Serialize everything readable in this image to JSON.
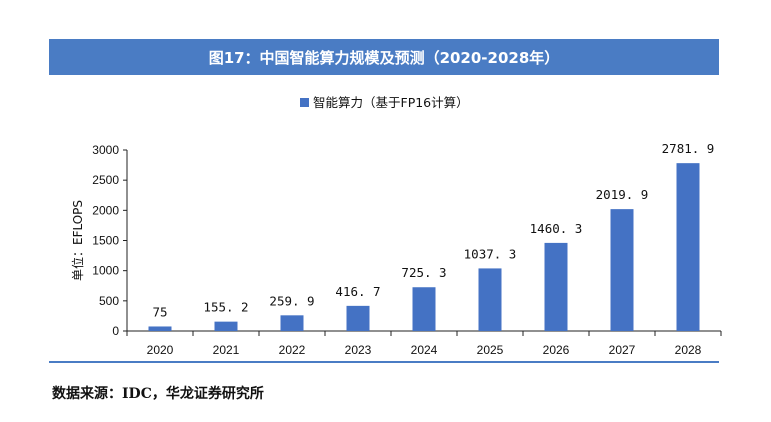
{
  "title": "图17：中国智能算力规模及预测（2020-2028年）",
  "source": "数据来源：IDC，华龙证券研究所",
  "colors": {
    "accent": "#4a7cc4",
    "bar": "#4472c4"
  },
  "chart_data": {
    "type": "bar",
    "categories": [
      "2020",
      "2021",
      "2022",
      "2023",
      "2024",
      "2025",
      "2026",
      "2027",
      "2028"
    ],
    "series": [
      {
        "name": "智能算力（基于FP16计算）",
        "values": [
          75,
          155.2,
          259.9,
          416.7,
          725.3,
          1037.3,
          1460.3,
          2019.9,
          2781.9
        ],
        "labels": [
          "75",
          "155. 2",
          "259. 9",
          "416. 7",
          "725. 3",
          "1037. 3",
          "1460. 3",
          "2019. 9",
          "2781. 9"
        ]
      }
    ],
    "ylabel": "单位：EFLOPS",
    "ylim": [
      0,
      3000
    ],
    "yticks": [
      0,
      500,
      1000,
      1500,
      2000,
      2500,
      3000
    ],
    "legend": "top-center",
    "grid": false
  }
}
